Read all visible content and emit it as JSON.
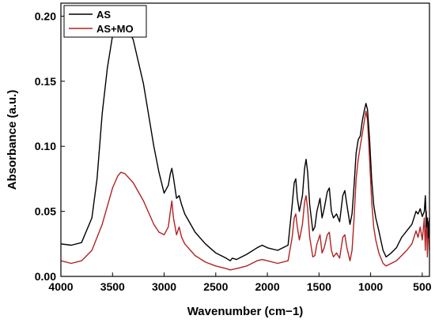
{
  "chart_data": {
    "type": "line",
    "title": "",
    "xlabel": "Wavenumber (cm−1)",
    "ylabel": "Absorbance (a.u.)",
    "xlim": [
      4000,
      430
    ],
    "ylim": [
      0,
      0.21
    ],
    "x_reversed": true,
    "grid": false,
    "legend_position": "top-left",
    "x_ticks": [
      4000,
      3500,
      3000,
      2500,
      2000,
      1500,
      1000,
      500
    ],
    "x_tick_labels": [
      "4000",
      "3500",
      "3000",
      "2500",
      "2000",
      "1500",
      "1000",
      "500"
    ],
    "y_ticks": [
      0,
      0.05,
      0.1,
      0.15,
      0.2
    ],
    "y_tick_labels": [
      "0.00",
      "0.05",
      "0.10",
      "0.15",
      "0.20"
    ],
    "series": [
      {
        "name": "AS",
        "color": "#000000",
        "points": [
          [
            4000,
            0.025
          ],
          [
            3900,
            0.024
          ],
          [
            3800,
            0.026
          ],
          [
            3700,
            0.045
          ],
          [
            3650,
            0.075
          ],
          [
            3600,
            0.125
          ],
          [
            3550,
            0.16
          ],
          [
            3500,
            0.185
          ],
          [
            3450,
            0.194
          ],
          [
            3420,
            0.197
          ],
          [
            3380,
            0.194
          ],
          [
            3300,
            0.182
          ],
          [
            3200,
            0.148
          ],
          [
            3100,
            0.1
          ],
          [
            3050,
            0.08
          ],
          [
            3000,
            0.064
          ],
          [
            2960,
            0.07
          ],
          [
            2940,
            0.079
          ],
          [
            2925,
            0.083
          ],
          [
            2910,
            0.076
          ],
          [
            2880,
            0.06
          ],
          [
            2855,
            0.062
          ],
          [
            2830,
            0.055
          ],
          [
            2800,
            0.048
          ],
          [
            2700,
            0.034
          ],
          [
            2600,
            0.025
          ],
          [
            2500,
            0.018
          ],
          [
            2400,
            0.014
          ],
          [
            2360,
            0.012
          ],
          [
            2340,
            0.014
          ],
          [
            2300,
            0.013
          ],
          [
            2200,
            0.017
          ],
          [
            2100,
            0.022
          ],
          [
            2050,
            0.024
          ],
          [
            2000,
            0.022
          ],
          [
            1900,
            0.02
          ],
          [
            1800,
            0.024
          ],
          [
            1760,
            0.055
          ],
          [
            1740,
            0.072
          ],
          [
            1725,
            0.075
          ],
          [
            1710,
            0.06
          ],
          [
            1690,
            0.05
          ],
          [
            1660,
            0.062
          ],
          [
            1640,
            0.083
          ],
          [
            1625,
            0.09
          ],
          [
            1610,
            0.08
          ],
          [
            1590,
            0.055
          ],
          [
            1560,
            0.035
          ],
          [
            1540,
            0.038
          ],
          [
            1520,
            0.05
          ],
          [
            1490,
            0.06
          ],
          [
            1470,
            0.045
          ],
          [
            1450,
            0.052
          ],
          [
            1420,
            0.065
          ],
          [
            1400,
            0.068
          ],
          [
            1380,
            0.05
          ],
          [
            1360,
            0.045
          ],
          [
            1330,
            0.048
          ],
          [
            1300,
            0.042
          ],
          [
            1270,
            0.062
          ],
          [
            1250,
            0.066
          ],
          [
            1230,
            0.055
          ],
          [
            1200,
            0.04
          ],
          [
            1180,
            0.048
          ],
          [
            1160,
            0.07
          ],
          [
            1140,
            0.095
          ],
          [
            1120,
            0.105
          ],
          [
            1100,
            0.108
          ],
          [
            1080,
            0.12
          ],
          [
            1060,
            0.128
          ],
          [
            1045,
            0.133
          ],
          [
            1030,
            0.128
          ],
          [
            1010,
            0.105
          ],
          [
            990,
            0.075
          ],
          [
            970,
            0.055
          ],
          [
            950,
            0.045
          ],
          [
            920,
            0.035
          ],
          [
            880,
            0.02
          ],
          [
            850,
            0.015
          ],
          [
            800,
            0.018
          ],
          [
            750,
            0.022
          ],
          [
            700,
            0.03
          ],
          [
            650,
            0.035
          ],
          [
            600,
            0.04
          ],
          [
            580,
            0.045
          ],
          [
            560,
            0.05
          ],
          [
            540,
            0.048
          ],
          [
            520,
            0.052
          ],
          [
            500,
            0.046
          ],
          [
            480,
            0.05
          ],
          [
            470,
            0.062
          ],
          [
            460,
            0.038
          ],
          [
            450,
            0.045
          ],
          [
            440,
            0.03
          ],
          [
            430,
            0.045
          ]
        ]
      },
      {
        "name": "AS+MO",
        "color": "#b22222",
        "points": [
          [
            4000,
            0.012
          ],
          [
            3900,
            0.01
          ],
          [
            3800,
            0.012
          ],
          [
            3700,
            0.02
          ],
          [
            3600,
            0.04
          ],
          [
            3500,
            0.068
          ],
          [
            3450,
            0.077
          ],
          [
            3420,
            0.08
          ],
          [
            3380,
            0.079
          ],
          [
            3300,
            0.072
          ],
          [
            3200,
            0.058
          ],
          [
            3100,
            0.04
          ],
          [
            3050,
            0.034
          ],
          [
            3000,
            0.032
          ],
          [
            2960,
            0.038
          ],
          [
            2940,
            0.05
          ],
          [
            2925,
            0.058
          ],
          [
            2910,
            0.045
          ],
          [
            2880,
            0.032
          ],
          [
            2855,
            0.038
          ],
          [
            2830,
            0.03
          ],
          [
            2800,
            0.025
          ],
          [
            2700,
            0.016
          ],
          [
            2600,
            0.011
          ],
          [
            2500,
            0.008
          ],
          [
            2400,
            0.006
          ],
          [
            2360,
            0.005
          ],
          [
            2300,
            0.006
          ],
          [
            2200,
            0.008
          ],
          [
            2100,
            0.012
          ],
          [
            2050,
            0.013
          ],
          [
            2000,
            0.012
          ],
          [
            1900,
            0.01
          ],
          [
            1800,
            0.012
          ],
          [
            1760,
            0.03
          ],
          [
            1740,
            0.045
          ],
          [
            1725,
            0.048
          ],
          [
            1710,
            0.038
          ],
          [
            1690,
            0.028
          ],
          [
            1660,
            0.04
          ],
          [
            1640,
            0.057
          ],
          [
            1625,
            0.062
          ],
          [
            1610,
            0.052
          ],
          [
            1590,
            0.03
          ],
          [
            1560,
            0.015
          ],
          [
            1540,
            0.016
          ],
          [
            1520,
            0.025
          ],
          [
            1490,
            0.032
          ],
          [
            1470,
            0.018
          ],
          [
            1450,
            0.022
          ],
          [
            1420,
            0.032
          ],
          [
            1400,
            0.034
          ],
          [
            1380,
            0.02
          ],
          [
            1360,
            0.015
          ],
          [
            1330,
            0.018
          ],
          [
            1300,
            0.014
          ],
          [
            1270,
            0.03
          ],
          [
            1250,
            0.032
          ],
          [
            1230,
            0.022
          ],
          [
            1200,
            0.012
          ],
          [
            1180,
            0.02
          ],
          [
            1160,
            0.045
          ],
          [
            1140,
            0.075
          ],
          [
            1120,
            0.09
          ],
          [
            1100,
            0.1
          ],
          [
            1080,
            0.11
          ],
          [
            1060,
            0.12
          ],
          [
            1045,
            0.127
          ],
          [
            1030,
            0.12
          ],
          [
            1010,
            0.09
          ],
          [
            990,
            0.058
          ],
          [
            970,
            0.038
          ],
          [
            950,
            0.028
          ],
          [
            920,
            0.018
          ],
          [
            880,
            0.01
          ],
          [
            850,
            0.008
          ],
          [
            800,
            0.01
          ],
          [
            750,
            0.012
          ],
          [
            700,
            0.016
          ],
          [
            650,
            0.02
          ],
          [
            600,
            0.025
          ],
          [
            580,
            0.03
          ],
          [
            560,
            0.035
          ],
          [
            540,
            0.03
          ],
          [
            520,
            0.038
          ],
          [
            500,
            0.028
          ],
          [
            480,
            0.045
          ],
          [
            470,
            0.02
          ],
          [
            460,
            0.05
          ],
          [
            450,
            0.015
          ],
          [
            440,
            0.042
          ],
          [
            430,
            0.02
          ]
        ]
      }
    ]
  }
}
